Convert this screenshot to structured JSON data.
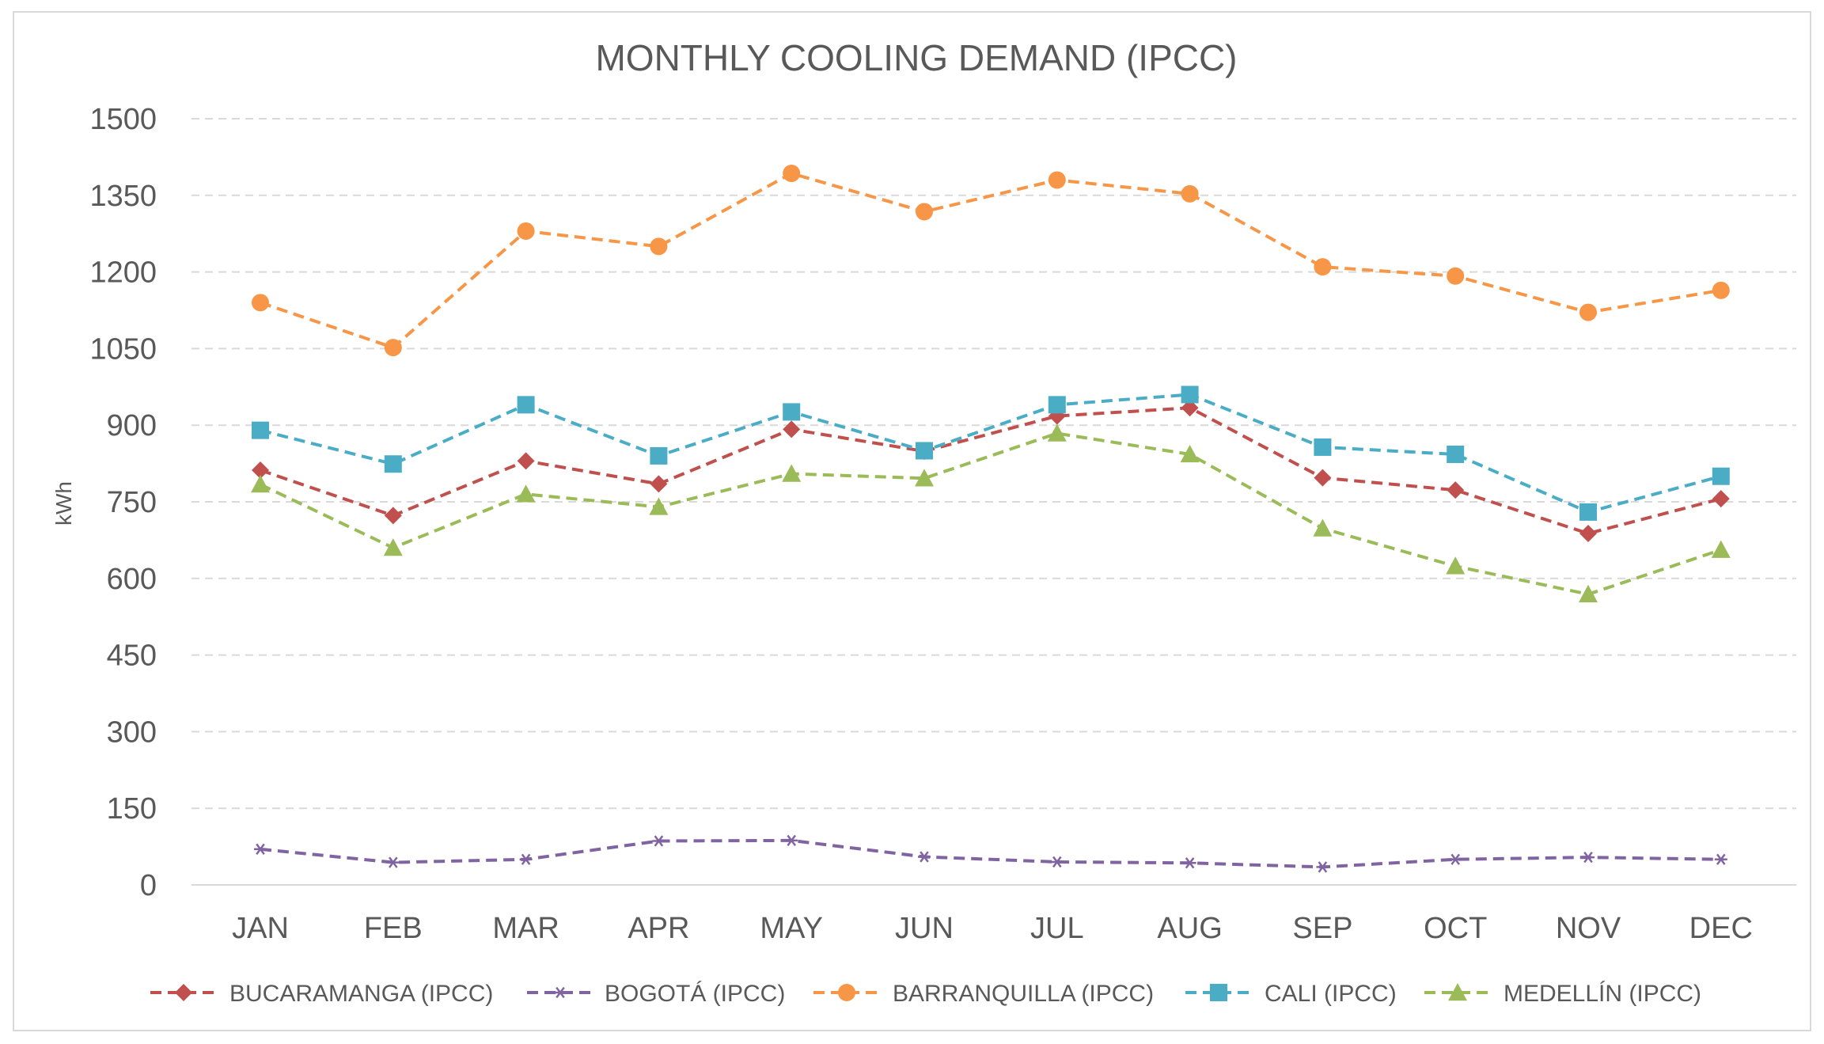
{
  "chart_data": {
    "type": "line",
    "title": "MONTHLY COOLING DEMAND (IPCC)",
    "xlabel": "",
    "ylabel": "kWh",
    "categories": [
      "JAN",
      "FEB",
      "MAR",
      "APR",
      "MAY",
      "JUN",
      "JUL",
      "AUG",
      "SEP",
      "OCT",
      "NOV",
      "DEC"
    ],
    "ylim": [
      0,
      1500
    ],
    "yticks": [
      0,
      150,
      300,
      450,
      600,
      750,
      900,
      1050,
      1200,
      1350,
      1500
    ],
    "grid": true,
    "legend_position": "bottom",
    "series": [
      {
        "name": "BUCARAMANGA (IPCC)",
        "color": "#c0504d",
        "marker": "diamond",
        "values": [
          812,
          723,
          830,
          785,
          892,
          849,
          918,
          934,
          797,
          773,
          688,
          756
        ]
      },
      {
        "name": "BOGOTÁ (IPCC)",
        "color": "#8064a2",
        "marker": "asterisk",
        "values": [
          70,
          44,
          50,
          86,
          87,
          55,
          45,
          43,
          35,
          50,
          54,
          50
        ]
      },
      {
        "name": "BARRANQUILLA (IPCC)",
        "color": "#f79646",
        "marker": "circle",
        "values": [
          1140,
          1052,
          1280,
          1250,
          1393,
          1318,
          1380,
          1353,
          1210,
          1192,
          1121,
          1164
        ]
      },
      {
        "name": "CALI (IPCC)",
        "color": "#4bacc6",
        "marker": "square",
        "values": [
          890,
          824,
          940,
          840,
          926,
          850,
          940,
          960,
          857,
          843,
          730,
          800
        ]
      },
      {
        "name": "MEDELLÍN (IPCC)",
        "color": "#9bbb59",
        "marker": "triangle",
        "values": [
          784,
          660,
          765,
          740,
          805,
          796,
          884,
          843,
          698,
          624,
          569,
          656
        ]
      }
    ]
  }
}
